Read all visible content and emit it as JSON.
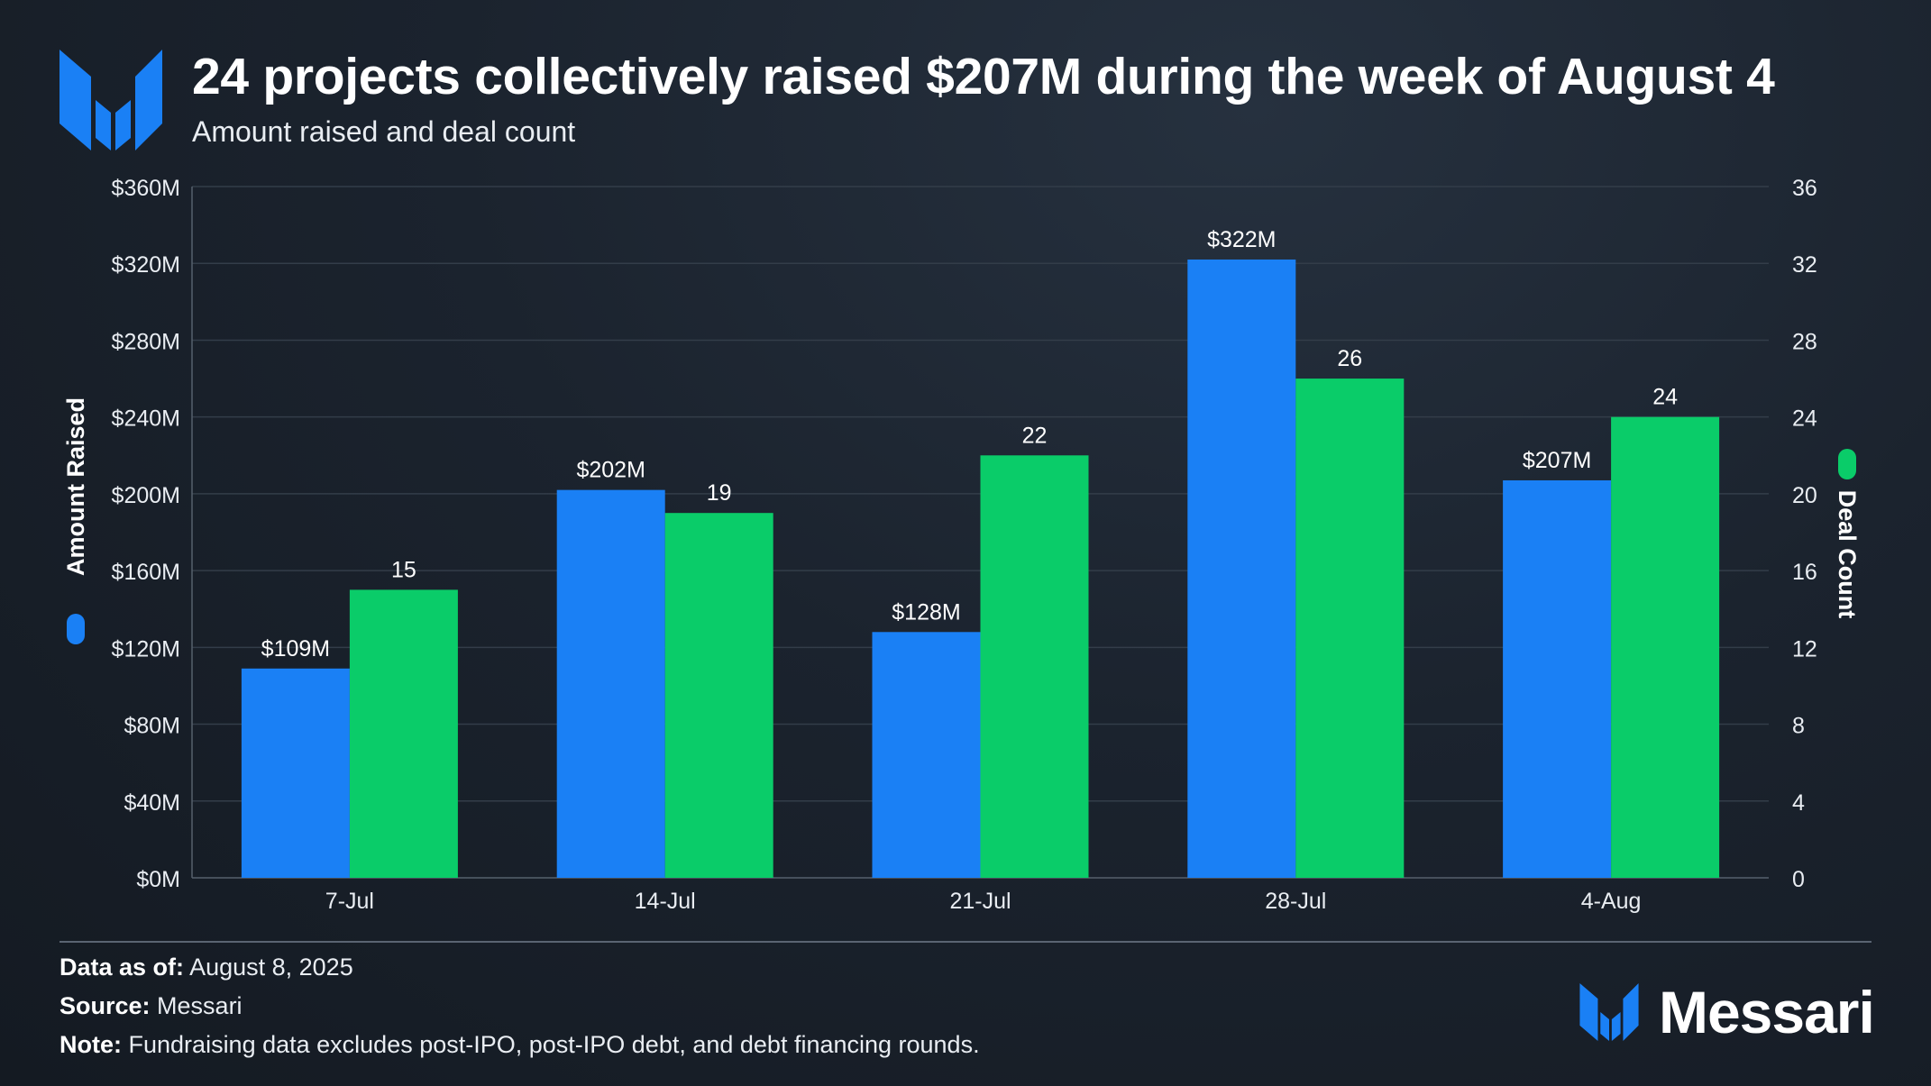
{
  "header": {
    "title": "24 projects collectively raised $207M during the week of August 4",
    "subtitle": "Amount raised and deal count"
  },
  "colors": {
    "amount_raised": "#1a80f5",
    "deal_count": "#0acc69",
    "logo": "#1a80f5"
  },
  "icons": {
    "logo": "messari-logo-icon"
  },
  "chart_data": {
    "type": "bar",
    "categories": [
      "7-Jul",
      "14-Jul",
      "21-Jul",
      "28-Jul",
      "4-Aug"
    ],
    "series": [
      {
        "name": "Amount Raised",
        "axis": "left",
        "values": [
          109,
          202,
          128,
          322,
          207
        ],
        "labels": [
          "$109M",
          "$202M",
          "$128M",
          "$322M",
          "$207M"
        ],
        "color": "#1a80f5"
      },
      {
        "name": "Deal Count",
        "axis": "right",
        "values": [
          15,
          19,
          22,
          26,
          24
        ],
        "labels": [
          "15",
          "19",
          "22",
          "26",
          "24"
        ],
        "color": "#0acc69"
      }
    ],
    "y_left": {
      "label": "Amount Raised",
      "range": [
        0,
        360
      ],
      "ticks": [
        0,
        40,
        80,
        120,
        160,
        200,
        240,
        280,
        320,
        360
      ],
      "tick_labels": [
        "$0M",
        "$40M",
        "$80M",
        "$120M",
        "$160M",
        "$200M",
        "$240M",
        "$280M",
        "$320M",
        "$360M"
      ]
    },
    "y_right": {
      "label": "Deal Count",
      "range": [
        0,
        36
      ],
      "ticks": [
        0,
        4,
        8,
        12,
        16,
        20,
        24,
        28,
        32,
        36
      ],
      "tick_labels": [
        "0",
        "4",
        "8",
        "12",
        "16",
        "20",
        "24",
        "28",
        "32",
        "36"
      ]
    },
    "grid": true
  },
  "footer": {
    "data_as_of_label": "Data as of:",
    "data_as_of": "August 8, 2025",
    "source_label": "Source:",
    "source": "Messari",
    "note_label": "Note:",
    "note": "Fundraising data excludes post-IPO, post-IPO debt, and debt financing rounds.",
    "brand": "Messari"
  }
}
